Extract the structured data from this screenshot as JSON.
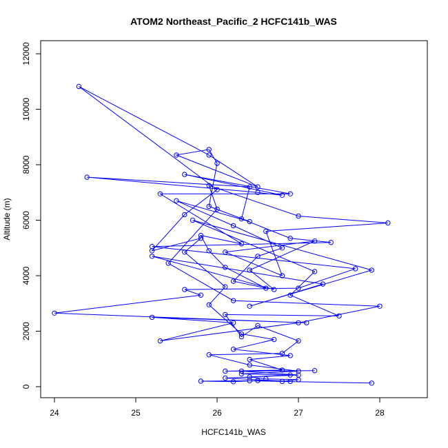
{
  "chart_data": {
    "type": "line",
    "title": "ATOM2 Northeast_Pacific_2 HCFC141b_WAS",
    "xlabel": "HCFC141b_WAS",
    "ylabel": "Altitude (m)",
    "xlim": [
      24,
      28.6
    ],
    "ylim": [
      0,
      12200
    ],
    "xticks": [
      24,
      25,
      26,
      27,
      28
    ],
    "yticks": [
      0,
      2000,
      4000,
      6000,
      8000,
      10000,
      12000
    ],
    "color": "#0000ff",
    "grid": false,
    "legend": "none",
    "series": [
      {
        "points": [
          [
            27.9,
            130
          ],
          [
            26.4,
            210
          ],
          [
            25.8,
            200
          ],
          [
            26.2,
            180
          ],
          [
            26.5,
            220
          ],
          [
            26.9,
            190
          ],
          [
            26.1,
            310
          ],
          [
            27.0,
            420
          ],
          [
            26.3,
            560
          ],
          [
            27.2,
            580
          ],
          [
            26.1,
            560
          ],
          [
            26.8,
            600
          ],
          [
            26.4,
            980
          ],
          [
            26.9,
            1120
          ],
          [
            26.2,
            1350
          ],
          [
            26.7,
            1700
          ],
          [
            26.3,
            1900
          ],
          [
            25.9,
            2950
          ],
          [
            26.1,
            3600
          ],
          [
            25.6,
            4850
          ],
          [
            25.8,
            5350
          ],
          [
            25.2,
            4900
          ],
          [
            25.6,
            6200
          ],
          [
            26.0,
            7100
          ],
          [
            24.3,
            10820
          ],
          [
            25.9,
            8350
          ],
          [
            26.5,
            7200
          ],
          [
            25.5,
            8350
          ],
          [
            25.9,
            8550
          ],
          [
            26.0,
            8050
          ],
          [
            25.9,
            6500
          ],
          [
            26.4,
            5950
          ],
          [
            25.5,
            6700
          ],
          [
            26.2,
            5800
          ],
          [
            26.8,
            5000
          ],
          [
            26.5,
            4700
          ],
          [
            26.2,
            3800
          ],
          [
            26.6,
            3550
          ],
          [
            26.1,
            4300
          ],
          [
            25.9,
            4900
          ],
          [
            25.8,
            5450
          ],
          [
            26.3,
            5150
          ],
          [
            25.3,
            6950
          ],
          [
            26.9,
            6950
          ],
          [
            25.6,
            7650
          ],
          [
            26.8,
            6900
          ],
          [
            26.5,
            7000
          ],
          [
            24.4,
            7550
          ],
          [
            26.4,
            7200
          ],
          [
            26.3,
            6050
          ],
          [
            26.9,
            5350
          ],
          [
            27.4,
            5200
          ],
          [
            25.2,
            5050
          ],
          [
            27.7,
            4250
          ],
          [
            27.0,
            3550
          ],
          [
            25.6,
            3500
          ],
          [
            25.8,
            3300
          ],
          [
            24.0,
            2650
          ],
          [
            27.1,
            2300
          ],
          [
            25.2,
            2500
          ],
          [
            26.2,
            2300
          ],
          [
            25.3,
            1650
          ],
          [
            27.0,
            2300
          ],
          [
            28.0,
            2900
          ],
          [
            26.2,
            3100
          ],
          [
            25.4,
            4450
          ],
          [
            26.0,
            6400
          ],
          [
            25.9,
            7250
          ],
          [
            27.0,
            6150
          ],
          [
            28.1,
            5900
          ],
          [
            26.6,
            5600
          ],
          [
            26.8,
            4000
          ],
          [
            26.1,
            4850
          ],
          [
            27.2,
            5250
          ],
          [
            26.4,
            4200
          ],
          [
            26.7,
            3500
          ],
          [
            25.2,
            4700
          ],
          [
            27.3,
            3700
          ],
          [
            26.4,
            2900
          ],
          [
            27.9,
            4200
          ],
          [
            25.7,
            6000
          ],
          [
            27.2,
            4150
          ],
          [
            26.9,
            3300
          ],
          [
            27.5,
            2550
          ],
          [
            26.1,
            2600
          ],
          [
            26.3,
            1800
          ],
          [
            26.5,
            2200
          ],
          [
            27.0,
            1650
          ],
          [
            26.8,
            1200
          ],
          [
            25.9,
            1150
          ],
          [
            26.4,
            780
          ],
          [
            27.0,
            560
          ],
          [
            26.3,
            460
          ],
          [
            26.9,
            420
          ],
          [
            26.4,
            350
          ],
          [
            26.6,
            280
          ],
          [
            27.0,
            250
          ],
          [
            26.8,
            190
          ]
        ]
      }
    ]
  }
}
